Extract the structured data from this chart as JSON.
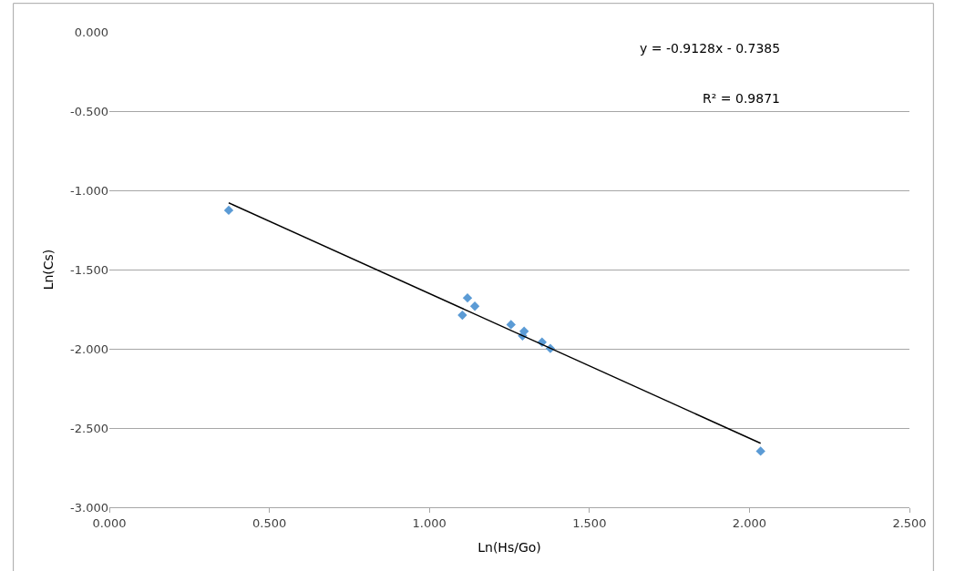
{
  "chart_data": {
    "type": "scatter",
    "xlabel": "Ln(Hs/Go)",
    "ylabel": "Ln(Cs)",
    "series": [
      {
        "color": "#5b9bd5",
        "marker": "diamond",
        "x": [
          0.373,
          1.103,
          1.119,
          1.142,
          1.255,
          1.291,
          1.296,
          1.352,
          1.378,
          2.035
        ],
        "values": [
          -1.126,
          -1.788,
          -1.679,
          -1.731,
          -1.847,
          -1.918,
          -1.889,
          -1.958,
          -1.998,
          -2.646
        ]
      },
      {
        "type": "line",
        "color": "#000000",
        "marker": "none",
        "line_style": "solid",
        "x": [
          0.373,
          2.035
        ],
        "values": [
          -1.079,
          -2.596
        ]
      }
    ],
    "annotations": [
      "y = -0.9128x - 0.7385",
      "R² = 0.9871"
    ],
    "xlim": [
      0,
      2.5
    ],
    "ylim": [
      -3,
      0
    ],
    "xticks": [
      {
        "value": 0,
        "label": "0.000"
      },
      {
        "value": 0.5,
        "label": "0.500"
      },
      {
        "value": 1,
        "label": "1.000"
      },
      {
        "value": 1.5,
        "label": "1.500"
      },
      {
        "value": 2,
        "label": "2.000"
      },
      {
        "value": 2.5,
        "label": "2.500"
      }
    ],
    "yticks": [
      {
        "value": 0,
        "label": "0.000"
      },
      {
        "value": -0.5,
        "label": "-0.500"
      },
      {
        "value": -1,
        "label": "-1.000"
      },
      {
        "value": -1.5,
        "label": "-1.500"
      },
      {
        "value": -2,
        "label": "-2.000"
      },
      {
        "value": -2.5,
        "label": "-2.500"
      },
      {
        "value": -3,
        "label": "-3.000"
      }
    ],
    "grid": "y"
  }
}
